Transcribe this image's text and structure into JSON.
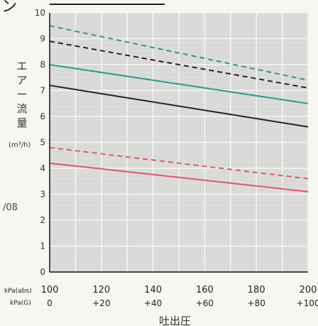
{
  "chart_data": {
    "type": "line",
    "title": "",
    "xlabel": "吐出圧",
    "ylabel_chars": [
      "エ",
      "ア",
      "ー",
      "流",
      "量"
    ],
    "ylabel": "エアー流量",
    "yunit": "(m³/h)",
    "x_units": [
      "kPa(abs)",
      "kPa(G)"
    ],
    "x": [
      100,
      120,
      140,
      160,
      180,
      200
    ],
    "x_ticks_abs": [
      "100",
      "120",
      "140",
      "160",
      "180",
      "200"
    ],
    "x_ticks_gauge": [
      "0",
      "+20",
      "+40",
      "+60",
      "+80",
      "+100"
    ],
    "y_ticks": [
      "0",
      "1",
      "2",
      "3",
      "4",
      "5",
      "6",
      "7",
      "8",
      "9",
      "10"
    ],
    "xlim": [
      100,
      200
    ],
    "ylim": [
      0,
      10
    ],
    "grid": true,
    "series": [
      {
        "color": "#2a9a8e",
        "dash": true,
        "x": [
          100,
          200
        ],
        "values": [
          9.5,
          7.4
        ]
      },
      {
        "color": "#222222",
        "dash": true,
        "x": [
          100,
          200
        ],
        "values": [
          8.9,
          7.1
        ]
      },
      {
        "color": "#2a9a8e",
        "dash": false,
        "x": [
          100,
          200
        ],
        "values": [
          8.0,
          6.5
        ]
      },
      {
        "color": "#222222",
        "dash": false,
        "x": [
          100,
          200
        ],
        "values": [
          7.2,
          5.6
        ]
      },
      {
        "color": "#e0566b",
        "dash": true,
        "x": [
          100,
          200
        ],
        "values": [
          4.8,
          3.6
        ]
      },
      {
        "color": "#e0566b",
        "dash": false,
        "x": [
          100,
          200
        ],
        "values": [
          4.2,
          3.1
        ]
      }
    ]
  },
  "fragments": {
    "top_left": "ン",
    "side_left": "/08"
  }
}
